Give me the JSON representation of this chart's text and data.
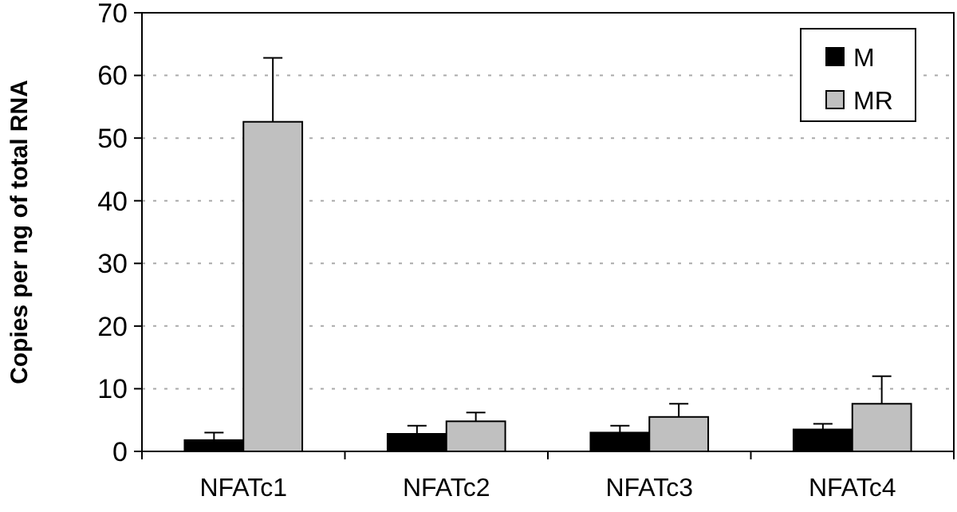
{
  "chart_data": {
    "type": "bar",
    "ylabel": "Copies per ng of total RNA",
    "categories": [
      "NFATc1",
      "NFATc2",
      "NFATc3",
      "NFATc4"
    ],
    "series": [
      {
        "name": "M",
        "color": "#000000",
        "values": [
          1.8,
          2.8,
          3.0,
          3.5
        ],
        "errors": [
          [
            1.8,
            3.0
          ],
          [
            2.8,
            4.1
          ],
          [
            3.0,
            4.1
          ],
          [
            3.5,
            4.4
          ]
        ]
      },
      {
        "name": "MR",
        "color": "#c0c0c0",
        "values": [
          52.6,
          4.8,
          5.5,
          7.6
        ],
        "errors": [
          [
            52.6,
            62.8
          ],
          [
            4.8,
            6.2
          ],
          [
            5.5,
            7.6
          ],
          [
            7.6,
            12.0
          ]
        ]
      }
    ],
    "ylim": [
      0,
      70
    ],
    "yticks": [
      0,
      10,
      20,
      30,
      40,
      50,
      60,
      70
    ],
    "grid": "y",
    "legend": "top right"
  }
}
